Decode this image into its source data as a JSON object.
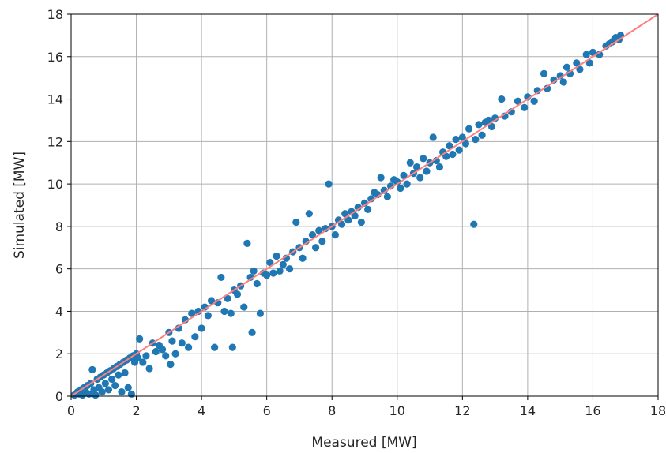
{
  "chart_data": {
    "type": "scatter",
    "title": "",
    "xlabel": "Measured [MW]",
    "ylabel": "Simulated [MW]",
    "xlim": [
      0,
      18
    ],
    "ylim": [
      0,
      18
    ],
    "xticks": [
      0,
      2,
      4,
      6,
      8,
      10,
      12,
      14,
      16,
      18
    ],
    "yticks": [
      0,
      2,
      4,
      6,
      8,
      10,
      12,
      14,
      16,
      18
    ],
    "grid": true,
    "legend": "none",
    "point_color": "#1f77b4",
    "reference_line": {
      "x": [
        0,
        18
      ],
      "y": [
        0,
        18
      ],
      "color": "#ff7f7f"
    },
    "series": [
      {
        "points": [
          [
            0.1,
            0.05
          ],
          [
            0.15,
            0.1
          ],
          [
            0.2,
            0.2
          ],
          [
            0.25,
            0.1
          ],
          [
            0.3,
            0.3
          ],
          [
            0.35,
            0.05
          ],
          [
            0.4,
            0.4
          ],
          [
            0.45,
            0.2
          ],
          [
            0.5,
            0.5
          ],
          [
            0.55,
            0.1
          ],
          [
            0.6,
            0.6
          ],
          [
            0.65,
            1.25
          ],
          [
            0.7,
            0.3
          ],
          [
            0.75,
            0.05
          ],
          [
            0.8,
            0.8
          ],
          [
            0.85,
            0.4
          ],
          [
            0.9,
            0.9
          ],
          [
            0.95,
            0.2
          ],
          [
            1.0,
            1.0
          ],
          [
            1.05,
            0.6
          ],
          [
            1.1,
            1.1
          ],
          [
            1.15,
            0.3
          ],
          [
            1.2,
            1.2
          ],
          [
            1.25,
            0.8
          ],
          [
            1.3,
            1.3
          ],
          [
            1.35,
            0.5
          ],
          [
            1.4,
            1.4
          ],
          [
            1.45,
            1.0
          ],
          [
            1.5,
            1.5
          ],
          [
            1.55,
            0.2
          ],
          [
            1.6,
            1.6
          ],
          [
            1.65,
            1.1
          ],
          [
            1.7,
            1.7
          ],
          [
            1.75,
            0.4
          ],
          [
            1.8,
            1.8
          ],
          [
            1.85,
            0.1
          ],
          [
            1.9,
            1.9
          ],
          [
            1.95,
            1.6
          ],
          [
            2.0,
            2.0
          ],
          [
            2.05,
            1.8
          ],
          [
            2.1,
            2.7
          ],
          [
            2.2,
            1.6
          ],
          [
            2.3,
            1.9
          ],
          [
            2.4,
            1.3
          ],
          [
            2.5,
            2.5
          ],
          [
            2.6,
            2.1
          ],
          [
            2.7,
            2.4
          ],
          [
            2.8,
            2.2
          ],
          [
            2.9,
            1.9
          ],
          [
            3.0,
            3.0
          ],
          [
            3.05,
            1.5
          ],
          [
            3.1,
            2.6
          ],
          [
            3.2,
            2.0
          ],
          [
            3.3,
            3.2
          ],
          [
            3.4,
            2.5
          ],
          [
            3.5,
            3.6
          ],
          [
            3.6,
            2.3
          ],
          [
            3.7,
            3.9
          ],
          [
            3.8,
            2.8
          ],
          [
            3.9,
            4.0
          ],
          [
            4.0,
            3.2
          ],
          [
            4.1,
            4.2
          ],
          [
            4.2,
            3.8
          ],
          [
            4.3,
            4.5
          ],
          [
            4.4,
            2.3
          ],
          [
            4.5,
            4.4
          ],
          [
            4.6,
            5.6
          ],
          [
            4.7,
            4.0
          ],
          [
            4.8,
            4.6
          ],
          [
            4.9,
            3.9
          ],
          [
            4.95,
            2.3
          ],
          [
            5.0,
            5.0
          ],
          [
            5.1,
            4.8
          ],
          [
            5.2,
            5.2
          ],
          [
            5.3,
            4.2
          ],
          [
            5.4,
            7.2
          ],
          [
            5.5,
            5.6
          ],
          [
            5.55,
            3.0
          ],
          [
            5.6,
            5.9
          ],
          [
            5.7,
            5.3
          ],
          [
            5.8,
            3.9
          ],
          [
            5.9,
            5.8
          ],
          [
            6.0,
            5.7
          ],
          [
            6.1,
            6.3
          ],
          [
            6.2,
            5.8
          ],
          [
            6.3,
            6.6
          ],
          [
            6.4,
            5.9
          ],
          [
            6.5,
            6.2
          ],
          [
            6.6,
            6.5
          ],
          [
            6.7,
            6.0
          ],
          [
            6.8,
            6.8
          ],
          [
            6.9,
            8.2
          ],
          [
            7.0,
            7.0
          ],
          [
            7.1,
            6.5
          ],
          [
            7.2,
            7.3
          ],
          [
            7.3,
            8.6
          ],
          [
            7.4,
            7.6
          ],
          [
            7.5,
            7.0
          ],
          [
            7.6,
            7.8
          ],
          [
            7.7,
            7.3
          ],
          [
            7.8,
            7.9
          ],
          [
            7.9,
            10.0
          ],
          [
            8.0,
            8.0
          ],
          [
            8.1,
            7.6
          ],
          [
            8.2,
            8.3
          ],
          [
            8.3,
            8.1
          ],
          [
            8.4,
            8.6
          ],
          [
            8.5,
            8.3
          ],
          [
            8.6,
            8.7
          ],
          [
            8.7,
            8.5
          ],
          [
            8.8,
            8.9
          ],
          [
            8.9,
            8.2
          ],
          [
            9.0,
            9.1
          ],
          [
            9.1,
            8.8
          ],
          [
            9.2,
            9.3
          ],
          [
            9.3,
            9.6
          ],
          [
            9.4,
            9.5
          ],
          [
            9.5,
            10.3
          ],
          [
            9.6,
            9.7
          ],
          [
            9.7,
            9.4
          ],
          [
            9.8,
            9.9
          ],
          [
            9.9,
            10.2
          ],
          [
            10.0,
            10.1
          ],
          [
            10.1,
            9.8
          ],
          [
            10.2,
            10.4
          ],
          [
            10.3,
            10.0
          ],
          [
            10.4,
            11.0
          ],
          [
            10.5,
            10.5
          ],
          [
            10.6,
            10.8
          ],
          [
            10.7,
            10.3
          ],
          [
            10.8,
            11.2
          ],
          [
            10.9,
            10.6
          ],
          [
            11.0,
            11.0
          ],
          [
            11.1,
            12.2
          ],
          [
            11.2,
            11.1
          ],
          [
            11.3,
            10.8
          ],
          [
            11.4,
            11.5
          ],
          [
            11.5,
            11.3
          ],
          [
            11.6,
            11.8
          ],
          [
            11.7,
            11.4
          ],
          [
            11.8,
            12.1
          ],
          [
            11.9,
            11.6
          ],
          [
            12.0,
            12.2
          ],
          [
            12.1,
            11.9
          ],
          [
            12.2,
            12.6
          ],
          [
            12.35,
            8.1
          ],
          [
            12.4,
            12.1
          ],
          [
            12.5,
            12.8
          ],
          [
            12.6,
            12.3
          ],
          [
            12.7,
            12.9
          ],
          [
            12.8,
            13.0
          ],
          [
            12.9,
            12.7
          ],
          [
            13.0,
            13.1
          ],
          [
            13.2,
            14.0
          ],
          [
            13.3,
            13.2
          ],
          [
            13.5,
            13.4
          ],
          [
            13.7,
            13.9
          ],
          [
            13.9,
            13.6
          ],
          [
            14.0,
            14.1
          ],
          [
            14.2,
            13.9
          ],
          [
            14.3,
            14.4
          ],
          [
            14.5,
            15.2
          ],
          [
            14.6,
            14.5
          ],
          [
            14.8,
            14.9
          ],
          [
            15.0,
            15.1
          ],
          [
            15.1,
            14.8
          ],
          [
            15.2,
            15.5
          ],
          [
            15.3,
            15.2
          ],
          [
            15.5,
            15.7
          ],
          [
            15.6,
            15.4
          ],
          [
            15.8,
            16.1
          ],
          [
            15.9,
            15.7
          ],
          [
            16.0,
            16.2
          ],
          [
            16.2,
            16.1
          ],
          [
            16.4,
            16.5
          ],
          [
            16.5,
            16.6
          ],
          [
            16.6,
            16.7
          ],
          [
            16.7,
            16.9
          ],
          [
            16.8,
            16.8
          ],
          [
            16.85,
            17.0
          ]
        ]
      }
    ]
  }
}
